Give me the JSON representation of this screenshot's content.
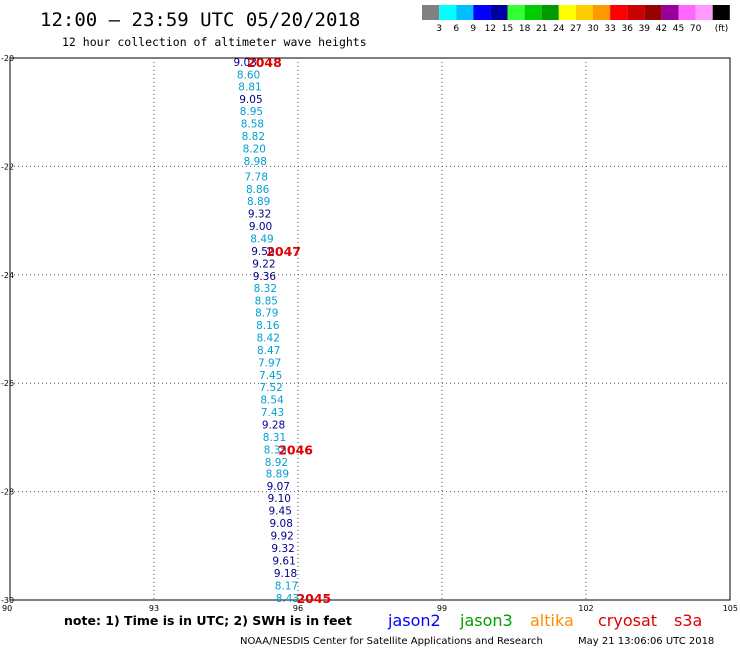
{
  "header": {
    "title": "12:00 – 23:59 UTC 05/20/2018",
    "subtitle": "12 hour collection of altimeter wave heights"
  },
  "legend": {
    "colors": [
      "#808080",
      "#00ffff",
      "#00bfff",
      "#0000ff",
      "#0000a0",
      "#33ff33",
      "#00cc00",
      "#009900",
      "#ffff00",
      "#ffcc00",
      "#ff9900",
      "#ff0000",
      "#cc0000",
      "#990000",
      "#990099",
      "#ff66ff",
      "#ff99ff",
      "#000000"
    ],
    "labels": [
      "3",
      "6",
      "9",
      "12",
      "15",
      "18",
      "21",
      "24",
      "27",
      "30",
      "33",
      "36",
      "39",
      "42",
      "45",
      "70"
    ],
    "unit": "(ft)"
  },
  "footer": {
    "note": "note: 1) Time is in UTC; 2) SWH is in feet",
    "credit": "NOAA/NESDIS Center for Satellite Applications and Research",
    "timestamp": "May 21 13:06:06 UTC 2018"
  },
  "satellites": [
    {
      "name": "jason2",
      "color": "#0000ff"
    },
    {
      "name": "jason3",
      "color": "#00a000"
    },
    {
      "name": "altika",
      "color": "#ff8c00"
    },
    {
      "name": "cryosat",
      "color": "#e00000"
    },
    {
      "name": "s3a",
      "color": "#e00000"
    }
  ],
  "chart_data": {
    "type": "scatter",
    "title": "12:00 – 23:59 UTC 05/20/2018",
    "subtitle": "12 hour collection of altimeter wave heights",
    "xlim": [
      90,
      105
    ],
    "ylim": [
      -30,
      -20
    ],
    "x_ticks": [
      "90",
      "93",
      "96",
      "99",
      "102",
      "105"
    ],
    "y_ticks": [
      "-20",
      "-22",
      "-24",
      "-26",
      "-28",
      "-30"
    ],
    "grid": true,
    "color_light": "#00a0d0",
    "color_dark": "#00008b",
    "track_points": [
      {
        "lon": 94.9,
        "lat": -20.07,
        "label": "9.03"
      },
      {
        "lon": 94.97,
        "lat": -20.3,
        "label": "8.60"
      },
      {
        "lon": 95.0,
        "lat": -20.53,
        "label": "8.81"
      },
      {
        "lon": 95.02,
        "lat": -20.76,
        "label": "9.05"
      },
      {
        "lon": 95.03,
        "lat": -20.98,
        "label": "8.95"
      },
      {
        "lon": 95.05,
        "lat": -21.21,
        "label": "8.58"
      },
      {
        "lon": 95.07,
        "lat": -21.44,
        "label": "8.82"
      },
      {
        "lon": 95.09,
        "lat": -21.67,
        "label": "8.20"
      },
      {
        "lon": 95.11,
        "lat": -21.9,
        "label": "8.98"
      },
      {
        "lon": 95.13,
        "lat": -22.19,
        "label": "7.78"
      },
      {
        "lon": 95.16,
        "lat": -22.42,
        "label": "8.86"
      },
      {
        "lon": 95.18,
        "lat": -22.64,
        "label": "8.89"
      },
      {
        "lon": 95.2,
        "lat": -22.87,
        "label": "9.32"
      },
      {
        "lon": 95.22,
        "lat": -23.1,
        "label": "9.00"
      },
      {
        "lon": 95.25,
        "lat": -23.33,
        "label": "8.49"
      },
      {
        "lon": 95.27,
        "lat": -23.56,
        "label": "9.50"
      },
      {
        "lon": 95.29,
        "lat": -23.79,
        "label": "9.22"
      },
      {
        "lon": 95.3,
        "lat": -24.02,
        "label": "9.36"
      },
      {
        "lon": 95.32,
        "lat": -24.24,
        "label": "8.32"
      },
      {
        "lon": 95.34,
        "lat": -24.47,
        "label": "8.85"
      },
      {
        "lon": 95.35,
        "lat": -24.7,
        "label": "8.79"
      },
      {
        "lon": 95.37,
        "lat": -24.93,
        "label": "8.16"
      },
      {
        "lon": 95.38,
        "lat": -25.16,
        "label": "8.42"
      },
      {
        "lon": 95.39,
        "lat": -25.39,
        "label": "8.47"
      },
      {
        "lon": 95.41,
        "lat": -25.62,
        "label": "7.97"
      },
      {
        "lon": 95.43,
        "lat": -25.85,
        "label": "7.45"
      },
      {
        "lon": 95.44,
        "lat": -26.07,
        "label": "7.52"
      },
      {
        "lon": 95.46,
        "lat": -26.3,
        "label": "8.54"
      },
      {
        "lon": 95.47,
        "lat": -26.53,
        "label": "7.43"
      },
      {
        "lon": 95.49,
        "lat": -26.76,
        "label": "9.28"
      },
      {
        "lon": 95.51,
        "lat": -26.99,
        "label": "8.31"
      },
      {
        "lon": 95.53,
        "lat": -27.22,
        "label": "8.35"
      },
      {
        "lon": 95.55,
        "lat": -27.45,
        "label": "8.92"
      },
      {
        "lon": 95.57,
        "lat": -27.67,
        "label": "8.89"
      },
      {
        "lon": 95.59,
        "lat": -27.9,
        "label": "9.07"
      },
      {
        "lon": 95.61,
        "lat": -28.12,
        "label": "9.10"
      },
      {
        "lon": 95.63,
        "lat": -28.35,
        "label": "9.45"
      },
      {
        "lon": 95.65,
        "lat": -28.58,
        "label": "9.08"
      },
      {
        "lon": 95.67,
        "lat": -28.81,
        "label": "9.92"
      },
      {
        "lon": 95.69,
        "lat": -29.04,
        "label": "9.32"
      },
      {
        "lon": 95.71,
        "lat": -29.27,
        "label": "9.61"
      },
      {
        "lon": 95.74,
        "lat": -29.5,
        "label": "9.18"
      },
      {
        "lon": 95.76,
        "lat": -29.73,
        "label": "8.17"
      },
      {
        "lon": 95.78,
        "lat": -29.96,
        "label": "8.43"
      }
    ],
    "time_labels": [
      {
        "lon": 95.3,
        "lat": -20.07,
        "label": "2048"
      },
      {
        "lon": 95.7,
        "lat": -23.56,
        "label": "2047"
      },
      {
        "lon": 95.95,
        "lat": -27.22,
        "label": "2046"
      },
      {
        "lon": 96.33,
        "lat": -29.96,
        "label": "2045"
      }
    ]
  }
}
